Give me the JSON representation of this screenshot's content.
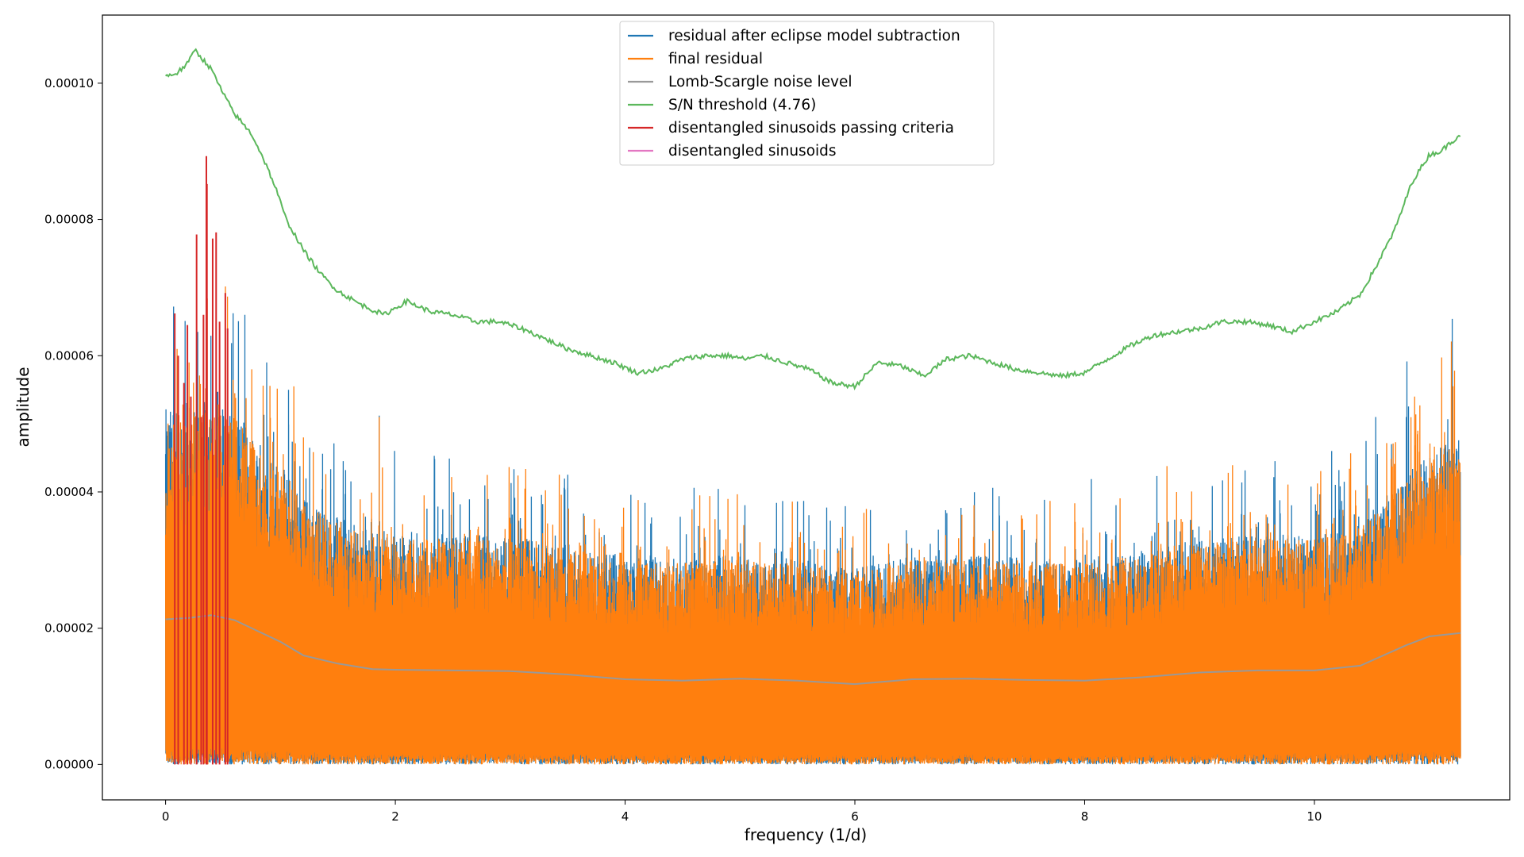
{
  "chart_data": {
    "type": "line",
    "xlabel": "frequency (1/d)",
    "ylabel": "amplitude",
    "xlim": [
      -0.55,
      11.7
    ],
    "ylim": [
      -5.2e-06,
      0.00011
    ],
    "x_ticks": [
      0,
      2,
      4,
      6,
      8,
      10
    ],
    "x_tick_labels": [
      "0",
      "2",
      "4",
      "6",
      "8",
      "10"
    ],
    "y_ticks": [
      0,
      2e-05,
      4e-05,
      6e-05,
      8e-05,
      0.0001
    ],
    "y_tick_labels": [
      "0.00000",
      "0.00002",
      "0.00004",
      "0.00006",
      "0.00008",
      "0.00010"
    ],
    "grid": false,
    "legend_position": "upper-center",
    "legend": [
      {
        "label": "residual after eclipse model subtraction",
        "color": "#1f77b4"
      },
      {
        "label": "final residual",
        "color": "#ff7f0e"
      },
      {
        "label": "Lomb-Scargle noise level",
        "color": "#999999"
      },
      {
        "label": "S/N threshold (4.76)",
        "color": "#5cb85c"
      },
      {
        "label": "disentangled sinusoids passing criteria",
        "color": "#d62728"
      },
      {
        "label": "disentangled sinusoids",
        "color": "#e377c2"
      }
    ],
    "series": [
      {
        "name": "S/N threshold (4.76)",
        "color": "#5cb85c",
        "x": [
          0.0,
          0.1,
          0.2,
          0.25,
          0.4,
          0.5,
          0.6,
          0.75,
          0.85,
          0.95,
          1.05,
          1.2,
          1.35,
          1.5,
          1.7,
          1.9,
          2.1,
          2.3,
          2.5,
          2.7,
          2.9,
          3.1,
          3.3,
          3.5,
          3.7,
          3.9,
          4.1,
          4.3,
          4.5,
          4.7,
          4.9,
          5.05,
          5.2,
          5.4,
          5.6,
          5.8,
          6.0,
          6.2,
          6.4,
          6.6,
          6.8,
          7.0,
          7.2,
          7.4,
          7.6,
          7.8,
          8.0,
          8.2,
          8.4,
          8.6,
          8.8,
          9.0,
          9.2,
          9.4,
          9.6,
          9.8,
          10.0,
          10.2,
          10.4,
          10.55,
          10.7,
          10.85,
          11.0,
          11.1,
          11.2,
          11.27
        ],
        "values": [
          0.000101,
          0.0001015,
          0.000103,
          0.000105,
          0.000102,
          9.85e-05,
          9.55e-05,
          9.25e-05,
          8.9e-05,
          8.5e-05,
          8e-05,
          7.55e-05,
          7.2e-05,
          6.95e-05,
          6.75e-05,
          6.6e-05,
          6.8e-05,
          6.65e-05,
          6.6e-05,
          6.5e-05,
          6.5e-05,
          6.4e-05,
          6.25e-05,
          6.1e-05,
          6e-05,
          5.9e-05,
          5.75e-05,
          5.8e-05,
          5.95e-05,
          6e-05,
          6e-05,
          5.95e-05,
          6e-05,
          5.9e-05,
          5.8e-05,
          5.6e-05,
          5.55e-05,
          5.9e-05,
          5.85e-05,
          5.7e-05,
          5.95e-05,
          6e-05,
          5.9e-05,
          5.8e-05,
          5.75e-05,
          5.7e-05,
          5.75e-05,
          5.95e-05,
          6.15e-05,
          6.3e-05,
          6.35e-05,
          6.4e-05,
          6.5e-05,
          6.5e-05,
          6.45e-05,
          6.35e-05,
          6.5e-05,
          6.65e-05,
          6.9e-05,
          7.35e-05,
          7.85e-05,
          8.55e-05,
          8.95e-05,
          9e-05,
          9.15e-05,
          9.25e-05
        ]
      },
      {
        "name": "Lomb-Scargle noise level",
        "color": "#999999",
        "x": [
          0.0,
          0.2,
          0.4,
          0.6,
          0.8,
          1.0,
          1.2,
          1.5,
          1.8,
          2.0,
          2.5,
          3.0,
          3.5,
          4.0,
          4.5,
          5.0,
          5.5,
          6.0,
          6.5,
          7.0,
          7.5,
          8.0,
          8.5,
          9.0,
          9.5,
          10.0,
          10.4,
          10.8,
          11.0,
          11.27
        ],
        "values": [
          2.13e-05,
          2.15e-05,
          2.19e-05,
          2.12e-05,
          1.96e-05,
          1.8e-05,
          1.6e-05,
          1.48e-05,
          1.4e-05,
          1.39e-05,
          1.38e-05,
          1.37e-05,
          1.32e-05,
          1.25e-05,
          1.23e-05,
          1.26e-05,
          1.23e-05,
          1.18e-05,
          1.25e-05,
          1.26e-05,
          1.24e-05,
          1.23e-05,
          1.28e-05,
          1.35e-05,
          1.38e-05,
          1.38e-05,
          1.45e-05,
          1.75e-05,
          1.88e-05,
          1.93e-05
        ]
      },
      {
        "name": "residual after eclipse model subtraction",
        "color": "#1f77b4",
        "x_range": [
          0.0,
          11.27
        ],
        "peaks": [
          {
            "x": 0.07,
            "y": 6.72e-05
          },
          {
            "x": 0.17,
            "y": 6.51e-05
          },
          {
            "x": 0.28,
            "y": 6.35e-05
          },
          {
            "x": 0.69,
            "y": 6.6e-05
          },
          {
            "x": 0.88,
            "y": 5.9e-05
          },
          {
            "x": 1.07,
            "y": 5.5e-05
          },
          {
            "x": 1.86,
            "y": 5.12e-05
          },
          {
            "x": 2.47,
            "y": 4.49e-05
          },
          {
            "x": 3.5,
            "y": 4.06e-05
          },
          {
            "x": 4.6,
            "y": 4.06e-05
          },
          {
            "x": 5.5,
            "y": 3.86e-05
          },
          {
            "x": 7.2,
            "y": 4.06e-05
          },
          {
            "x": 9.2,
            "y": 4.17e-05
          },
          {
            "x": 10.15,
            "y": 4.6e-05
          },
          {
            "x": 10.8,
            "y": 5.1e-05
          },
          {
            "x": 11.2,
            "y": 6.54e-05
          }
        ]
      },
      {
        "name": "final residual",
        "color": "#ff7f0e",
        "x_range": [
          0.0,
          11.27
        ],
        "peaks": [
          {
            "x": 0.1,
            "y": 6.1e-05
          },
          {
            "x": 0.33,
            "y": 6.4e-05
          },
          {
            "x": 0.75,
            "y": 5.8e-05
          },
          {
            "x": 1.2,
            "y": 4.8e-05
          },
          {
            "x": 1.86,
            "y": 5.1e-05
          },
          {
            "x": 2.8,
            "y": 4.25e-05
          },
          {
            "x": 4.65,
            "y": 3.95e-05
          },
          {
            "x": 6.1,
            "y": 3.75e-05
          },
          {
            "x": 8.8,
            "y": 4e-05
          },
          {
            "x": 9.25,
            "y": 4.28e-05
          },
          {
            "x": 10.9,
            "y": 4.9e-05
          },
          {
            "x": 11.22,
            "y": 5.78e-05
          }
        ]
      },
      {
        "name": "disentangled sinusoids passing criteria",
        "color": "#d62728",
        "stems": [
          {
            "x": 0.08,
            "y": 6.62e-05
          },
          {
            "x": 0.11,
            "y": 6e-05
          },
          {
            "x": 0.16,
            "y": 5.6e-05
          },
          {
            "x": 0.19,
            "y": 6.45e-05
          },
          {
            "x": 0.22,
            "y": 5.4e-05
          },
          {
            "x": 0.27,
            "y": 7.78e-05
          },
          {
            "x": 0.31,
            "y": 5.1e-05
          },
          {
            "x": 0.33,
            "y": 6.6e-05
          },
          {
            "x": 0.355,
            "y": 8.93e-05
          },
          {
            "x": 0.36,
            "y": 8.52e-05
          },
          {
            "x": 0.41,
            "y": 7.72e-05
          },
          {
            "x": 0.44,
            "y": 7.81e-05
          },
          {
            "x": 0.47,
            "y": 6.5e-05
          },
          {
            "x": 0.52,
            "y": 6.92e-05
          },
          {
            "x": 0.54,
            "y": 6.4e-05
          }
        ]
      }
    ]
  }
}
